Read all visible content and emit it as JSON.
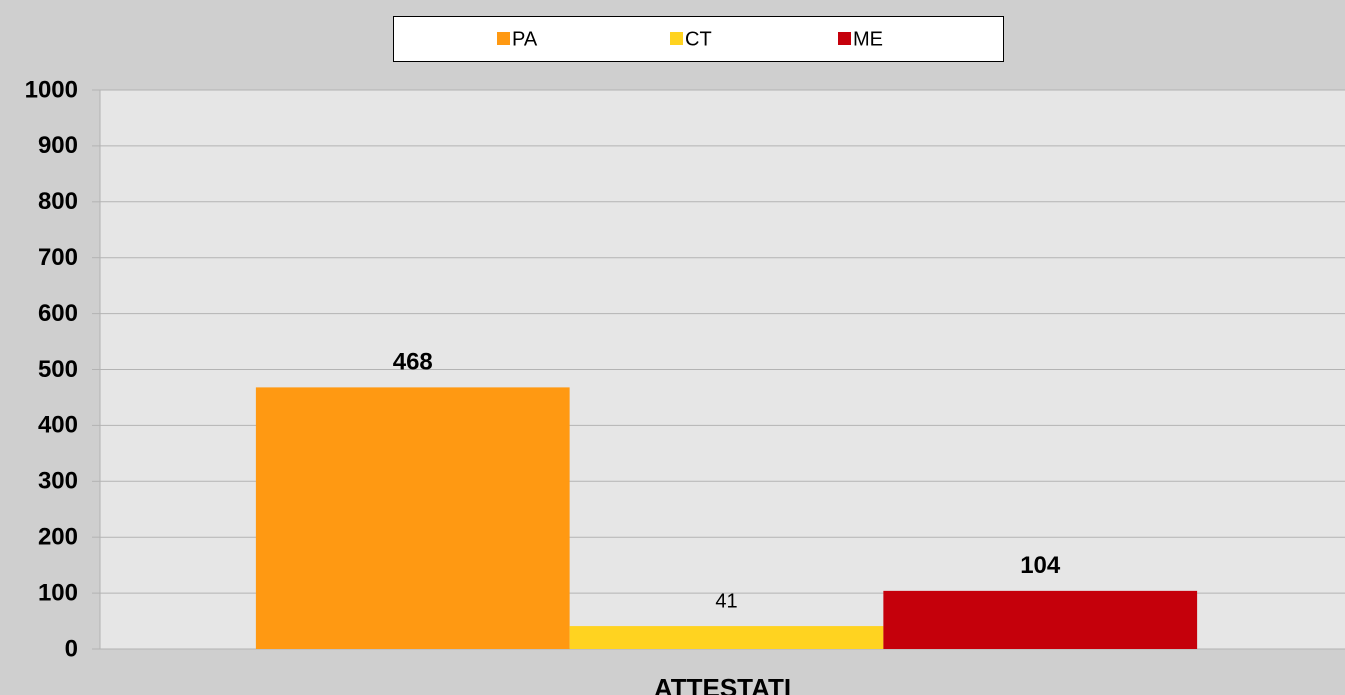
{
  "chart_data": {
    "type": "bar",
    "categories": [
      "ATTESTATI"
    ],
    "series": [
      {
        "name": "PA",
        "color": "#ff9912",
        "values": [
          468
        ]
      },
      {
        "name": "CT",
        "color": "#ffd320",
        "values": [
          41
        ]
      },
      {
        "name": "ME",
        "color": "#c5000b",
        "values": [
          104
        ]
      }
    ],
    "ylim": [
      0,
      1000
    ],
    "yticks": [
      0,
      100,
      200,
      300,
      400,
      500,
      600,
      700,
      800,
      900,
      1000
    ],
    "grid": true,
    "legend": "top"
  }
}
